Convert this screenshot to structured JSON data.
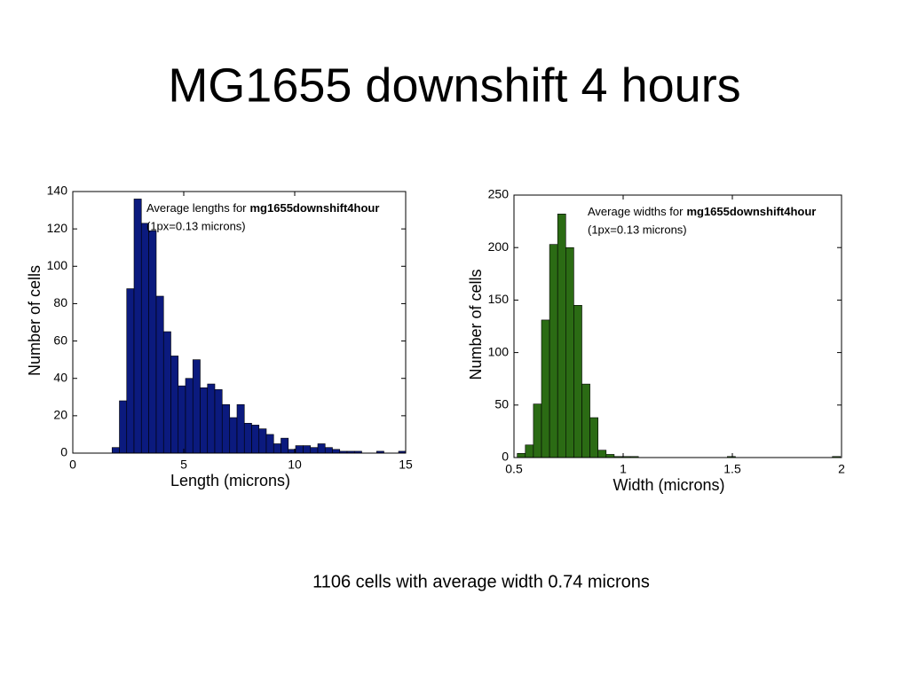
{
  "title": "MG1655 downshift 4 hours",
  "caption": "1106 cells with average width 0.74 microns",
  "chart_data": [
    {
      "type": "histogram",
      "xlabel": "Length (microns)",
      "ylabel": "Number of cells",
      "annotation": "Average lengths for",
      "annotation_bold": "mg1655downshift4hour",
      "annotation_note": "(1px=0.13 microns)",
      "color": "#0b1a7e",
      "bins": [
        1.77,
        2.1,
        2.43,
        2.76,
        3.09,
        3.42,
        3.76,
        4.09,
        4.42,
        4.75,
        5.08,
        5.41,
        5.74,
        6.07,
        6.4,
        6.73,
        7.07,
        7.4,
        7.73,
        8.06,
        8.39,
        8.72,
        9.05,
        9.38,
        9.71,
        10.04,
        10.38,
        10.71,
        11.04,
        11.37,
        11.7,
        12.03,
        12.36,
        12.69,
        13.02,
        13.35,
        13.69,
        14.02,
        14.35,
        14.68,
        15.0
      ],
      "values": [
        3,
        28,
        88,
        136,
        123,
        119,
        84,
        65,
        52,
        36,
        40,
        50,
        35,
        37,
        34,
        26,
        19,
        26,
        16,
        15,
        13,
        10,
        5,
        8,
        2,
        4,
        4,
        3,
        5,
        3,
        2,
        1,
        1,
        1,
        0,
        0,
        1,
        0,
        0,
        1
      ],
      "xlim": [
        0,
        15
      ],
      "xticks": [
        0,
        5,
        10,
        15
      ],
      "ylim": [
        0,
        140
      ],
      "yticks": [
        0,
        20,
        40,
        60,
        80,
        100,
        120,
        140
      ]
    },
    {
      "type": "histogram",
      "xlabel": "Width (microns)",
      "ylabel": "Number of cells",
      "annotation": "Average widths for",
      "annotation_bold": "mg1655downshift4hour",
      "annotation_note": "(1px=0.13 microns)",
      "color": "#2b6b14",
      "bins": [
        0.515,
        0.552,
        0.589,
        0.626,
        0.663,
        0.7,
        0.737,
        0.774,
        0.811,
        0.848,
        0.885,
        0.922,
        0.959,
        0.996,
        1.033,
        1.07,
        1.107,
        1.144,
        1.181,
        1.218,
        1.255,
        1.292,
        1.329,
        1.366,
        1.403,
        1.44,
        1.477,
        1.514,
        1.551,
        1.588,
        1.625,
        1.662,
        1.699,
        1.736,
        1.773,
        1.81,
        1.847,
        1.884,
        1.921,
        1.958,
        1.995
      ],
      "values": [
        4,
        12,
        51,
        131,
        203,
        232,
        200,
        145,
        70,
        38,
        7,
        3,
        1,
        1,
        1,
        0,
        0,
        0,
        0,
        0,
        0,
        0,
        0,
        0,
        0,
        0,
        1,
        0,
        0,
        0,
        0,
        0,
        0,
        0,
        0,
        0,
        0,
        0,
        0,
        1
      ],
      "xlim": [
        0.5,
        2
      ],
      "xticks": [
        0.5,
        1,
        1.5,
        2
      ],
      "ylim": [
        0,
        250
      ],
      "yticks": [
        0,
        50,
        100,
        150,
        200,
        250
      ]
    }
  ]
}
